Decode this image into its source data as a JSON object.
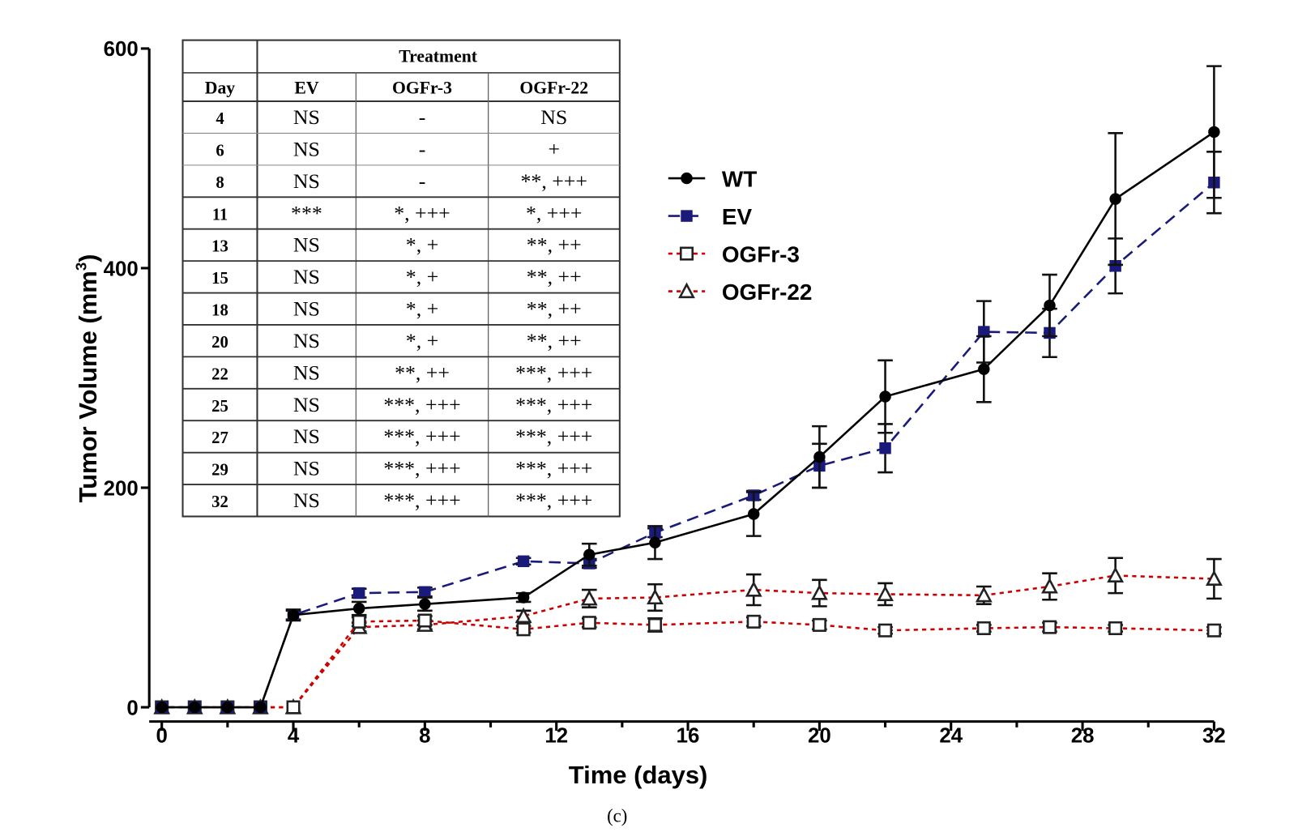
{
  "chart_data": {
    "type": "line",
    "xlabel": "Time (days)",
    "ylabel": "Tumor Volume (mm",
    "ylabel_sup": "3",
    "ylabel_close": ")",
    "caption": "(c)",
    "xlim": [
      0,
      32
    ],
    "ylim": [
      0,
      600
    ],
    "xticks": [
      0,
      4,
      8,
      12,
      16,
      20,
      24,
      28,
      32
    ],
    "yticks": [
      0,
      200,
      400,
      600
    ],
    "grid": false,
    "legend_position": "center-right",
    "x": [
      0,
      1,
      2,
      3,
      4,
      6,
      8,
      11,
      13,
      15,
      18,
      20,
      22,
      25,
      27,
      29,
      32
    ],
    "series": [
      {
        "name": "WT",
        "color": "#000000",
        "line": "solid",
        "marker": "filled-circle",
        "values": [
          0,
          0,
          0,
          0,
          84,
          90,
          94,
          100,
          139,
          150,
          176,
          228,
          283,
          308,
          366,
          463,
          524
        ],
        "error": [
          0,
          0,
          0,
          0,
          5,
          6,
          6,
          4,
          10,
          15,
          20,
          28,
          33,
          30,
          28,
          60,
          60
        ]
      },
      {
        "name": "EV",
        "color": "#1a1a7a",
        "line": "dashed",
        "marker": "filled-square",
        "values": [
          0,
          0,
          0,
          0,
          84,
          104,
          105,
          133,
          131,
          159,
          193,
          220,
          236,
          342,
          341,
          402,
          478
        ],
        "error": [
          0,
          0,
          0,
          0,
          4,
          4,
          4,
          3,
          4,
          4,
          4,
          20,
          22,
          28,
          22,
          25,
          28
        ]
      },
      {
        "name": "OGFr-3",
        "color": "#cc0000",
        "line": "dotted",
        "marker": "open-square",
        "values": [
          0,
          0,
          0,
          0,
          0,
          78,
          79,
          71,
          77,
          75,
          78,
          75,
          70,
          72,
          73,
          72,
          70
        ],
        "error": [
          0,
          0,
          0,
          0,
          0,
          4,
          4,
          3,
          4,
          6,
          4,
          4,
          3,
          3,
          4,
          3,
          3
        ]
      },
      {
        "name": "OGFr-22",
        "color": "#cc0000",
        "line": "dotted",
        "marker": "open-triangle",
        "values": [
          0,
          0,
          0,
          0,
          0,
          73,
          75,
          83,
          99,
          100,
          107,
          104,
          103,
          102,
          110,
          120,
          117
        ],
        "error": [
          0,
          0,
          0,
          0,
          0,
          4,
          4,
          5,
          8,
          12,
          14,
          12,
          10,
          8,
          12,
          16,
          18
        ]
      }
    ],
    "table": {
      "group_header": "Treatment",
      "columns": [
        "Day",
        "EV",
        "OGFr-3",
        "OGFr-22"
      ],
      "rows": [
        [
          "4",
          "NS",
          "-",
          "NS"
        ],
        [
          "6",
          "NS",
          "-",
          "+"
        ],
        [
          "8",
          "NS",
          "-",
          "**, +++"
        ],
        [
          "11",
          "***",
          "*, +++",
          "*, +++"
        ],
        [
          "13",
          "NS",
          "*, +",
          "**, ++"
        ],
        [
          "15",
          "NS",
          "*, +",
          "**, ++"
        ],
        [
          "18",
          "NS",
          "*, +",
          "**, ++"
        ],
        [
          "20",
          "NS",
          "*, +",
          "**, ++"
        ],
        [
          "22",
          "NS",
          "**, ++",
          "***, +++"
        ],
        [
          "25",
          "NS",
          "***, +++",
          "***, +++"
        ],
        [
          "27",
          "NS",
          "***, +++",
          "***, +++"
        ],
        [
          "29",
          "NS",
          "***, +++",
          "***, +++"
        ],
        [
          "32",
          "NS",
          "***, +++",
          "***, +++"
        ]
      ]
    }
  }
}
